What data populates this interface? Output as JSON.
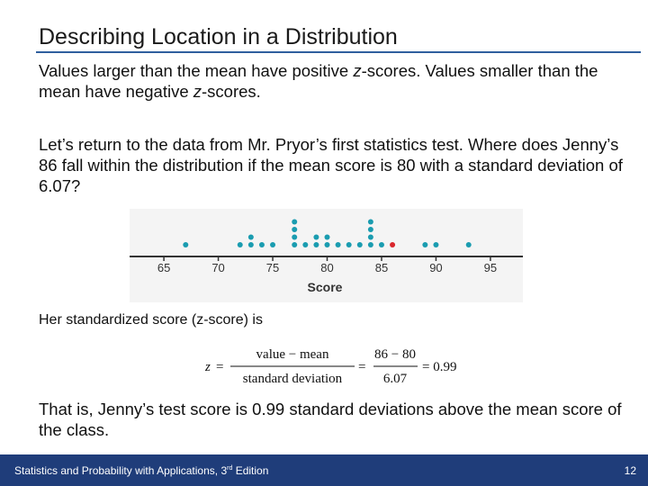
{
  "slide": {
    "title": "Describing Location in a Distribution",
    "p1_a": "Values larger than the mean have positive ",
    "p1_z1": "z",
    "p1_b": "-scores. Values smaller than the mean have negative ",
    "p1_z2": "z",
    "p1_c": "-scores.",
    "p2": "Let’s return to the data from Mr. Pryor’s first statistics test. Where does Jenny’s 86 fall within the distribution if the mean score is 80 with a standard deviation of 6.07?",
    "p3": "Her standardized score (z-score) is",
    "p4": "That is, Jenny’s test score is 0.99 standard deviations above the mean score of the class."
  },
  "formula": {
    "z": "z",
    "equals": "=",
    "numerator_1": "value − mean",
    "denominator_1": "standard deviation",
    "numerator_2": "86 − 80",
    "denominator_2": "6.07",
    "result": "= 0.99"
  },
  "chart_data": {
    "type": "scatter",
    "subtype": "dotplot",
    "xlabel": "Score",
    "xlim": [
      64,
      96
    ],
    "ticks": [
      65,
      70,
      75,
      80,
      85,
      90,
      95
    ],
    "points": [
      {
        "x": 67,
        "count": 1
      },
      {
        "x": 72,
        "count": 1
      },
      {
        "x": 73,
        "count": 2
      },
      {
        "x": 74,
        "count": 1
      },
      {
        "x": 75,
        "count": 1
      },
      {
        "x": 77,
        "count": 4
      },
      {
        "x": 78,
        "count": 1
      },
      {
        "x": 79,
        "count": 2
      },
      {
        "x": 80,
        "count": 2
      },
      {
        "x": 81,
        "count": 1
      },
      {
        "x": 82,
        "count": 1
      },
      {
        "x": 83,
        "count": 1
      },
      {
        "x": 84,
        "count": 4
      },
      {
        "x": 85,
        "count": 1
      },
      {
        "x": 86,
        "count": 1,
        "highlight": true
      },
      {
        "x": 89,
        "count": 1
      },
      {
        "x": 90,
        "count": 1
      },
      {
        "x": 93,
        "count": 1
      }
    ],
    "dot_color": "#1a9cb0",
    "highlight_color": "#d9262c",
    "axis_color": "#333333"
  },
  "footer": {
    "text_a": "Statistics and Probability with Applications, 3",
    "text_sup": "rd",
    "text_b": " Edition",
    "page": "12"
  }
}
